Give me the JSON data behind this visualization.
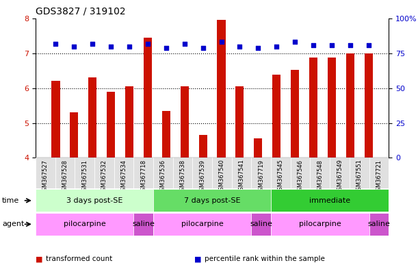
{
  "title": "GDS3827 / 319102",
  "samples": [
    "GSM367527",
    "GSM367528",
    "GSM367531",
    "GSM367532",
    "GSM367534",
    "GSM367718",
    "GSM367536",
    "GSM367538",
    "GSM367539",
    "GSM367540",
    "GSM367541",
    "GSM367719",
    "GSM367545",
    "GSM367546",
    "GSM367548",
    "GSM367549",
    "GSM367551",
    "GSM367721"
  ],
  "transformed_count": [
    6.2,
    5.3,
    6.3,
    5.9,
    6.05,
    7.45,
    5.35,
    6.05,
    4.65,
    7.95,
    6.05,
    4.55,
    6.38,
    6.52,
    6.88,
    6.88,
    7.0,
    7.0
  ],
  "percentile_rank": [
    82,
    80,
    82,
    80,
    80,
    82,
    79,
    82,
    79,
    83,
    80,
    79,
    80,
    83,
    81,
    81,
    81,
    81
  ],
  "ylim": [
    4,
    8
  ],
  "yticks_left": [
    4,
    5,
    6,
    7,
    8
  ],
  "yticks_right": [
    0,
    25,
    50,
    75,
    100
  ],
  "bar_color": "#cc1100",
  "dot_color": "#0000cc",
  "background_color": "#ffffff",
  "time_groups": [
    {
      "label": "3 days post-SE",
      "start": 0,
      "end": 6,
      "color": "#ccffcc"
    },
    {
      "label": "7 days post-SE",
      "start": 6,
      "end": 12,
      "color": "#66dd66"
    },
    {
      "label": "immediate",
      "start": 12,
      "end": 18,
      "color": "#33cc33"
    }
  ],
  "agent_groups": [
    {
      "label": "pilocarpine",
      "start": 0,
      "end": 5,
      "color": "#ff99ff"
    },
    {
      "label": "saline",
      "start": 5,
      "end": 6,
      "color": "#cc55cc"
    },
    {
      "label": "pilocarpine",
      "start": 6,
      "end": 11,
      "color": "#ff99ff"
    },
    {
      "label": "saline",
      "start": 11,
      "end": 12,
      "color": "#cc55cc"
    },
    {
      "label": "pilocarpine",
      "start": 12,
      "end": 17,
      "color": "#ff99ff"
    },
    {
      "label": "saline",
      "start": 17,
      "end": 18,
      "color": "#cc55cc"
    }
  ],
  "legend_items": [
    {
      "label": "transformed count",
      "color": "#cc1100"
    },
    {
      "label": "percentile rank within the sample",
      "color": "#0000cc"
    }
  ],
  "right_axis_label": "100%"
}
